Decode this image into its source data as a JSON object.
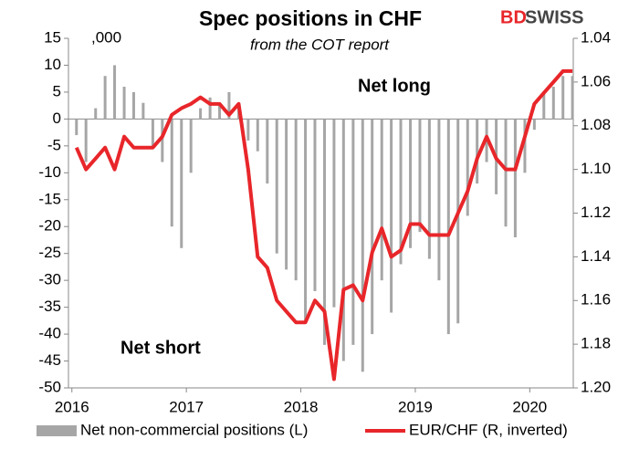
{
  "chart_data": {
    "type": "bar_line",
    "title": "Spec positions in CHF",
    "subtitle": "from the COT report",
    "logo_parts": [
      "BD",
      "SWISS"
    ],
    "annotations": [
      ",000",
      "Net long",
      "Net short"
    ],
    "x": [
      2016.04,
      2016.123,
      2016.207,
      2016.29,
      2016.373,
      2016.457,
      2016.54,
      2016.623,
      2016.707,
      2016.79,
      2016.873,
      2016.957,
      2017.04,
      2017.123,
      2017.207,
      2017.29,
      2017.373,
      2017.457,
      2017.54,
      2017.623,
      2017.707,
      2017.79,
      2017.873,
      2017.957,
      2018.04,
      2018.123,
      2018.207,
      2018.29,
      2018.373,
      2018.457,
      2018.54,
      2018.623,
      2018.707,
      2018.79,
      2018.873,
      2018.957,
      2019.04,
      2019.123,
      2019.207,
      2019.29,
      2019.373,
      2019.457,
      2019.54,
      2019.623,
      2019.707,
      2019.79,
      2019.873,
      2019.957,
      2020.04,
      2020.123,
      2020.207,
      2020.29,
      2020.373
    ],
    "series": [
      {
        "name": "Net non-commercial positions (L)",
        "color": "#a6a6a6",
        "axis": "y",
        "values": [
          -3,
          -8,
          2,
          8,
          10,
          6,
          5,
          3,
          -5,
          -8,
          -20,
          -24,
          -10,
          2,
          4,
          3,
          5,
          2,
          -4,
          -6,
          -12,
          -25,
          -28,
          -30,
          -38,
          -32,
          -42,
          -35,
          -45,
          -42,
          -47,
          -40,
          -30,
          -36,
          -27,
          -24,
          -21,
          -26,
          -30,
          -40,
          -38,
          -18,
          -12,
          -8,
          -14,
          -20,
          -22,
          -10,
          -2,
          5,
          6,
          8,
          8
        ]
      },
      {
        "name": "EUR/CHF (R, inverted)",
        "color": "#e8262a",
        "axis": "y2",
        "values": [
          1.09,
          1.1,
          1.095,
          1.09,
          1.1,
          1.085,
          1.09,
          1.09,
          1.09,
          1.085,
          1.075,
          1.072,
          1.07,
          1.067,
          1.07,
          1.07,
          1.075,
          1.07,
          1.1,
          1.14,
          1.145,
          1.16,
          1.165,
          1.17,
          1.17,
          1.16,
          1.165,
          1.196,
          1.155,
          1.153,
          1.16,
          1.138,
          1.127,
          1.14,
          1.137,
          1.125,
          1.125,
          1.13,
          1.13,
          1.13,
          1.12,
          1.11,
          1.095,
          1.085,
          1.095,
          1.1,
          1.1,
          1.085,
          1.07,
          1.065,
          1.06,
          1.055,
          1.055
        ]
      }
    ],
    "xlim": [
      2015.97,
      2020.38
    ],
    "xticks": [
      2016,
      2017,
      2018,
      2019,
      2020
    ],
    "ylim": [
      -50,
      15
    ],
    "yticks": [
      -50,
      -45,
      -40,
      -35,
      -30,
      -25,
      -20,
      -15,
      -10,
      -5,
      0,
      5,
      10,
      15
    ],
    "y2lim": [
      1.04,
      1.2
    ],
    "y2_inverted": true,
    "y2ticks": [
      1.04,
      1.06,
      1.08,
      {
        "value": 1.1,
        "label": "1.10"
      },
      1.12,
      1.14,
      1.16,
      1.18,
      {
        "value": 1.2,
        "label": "1.20"
      }
    ]
  }
}
